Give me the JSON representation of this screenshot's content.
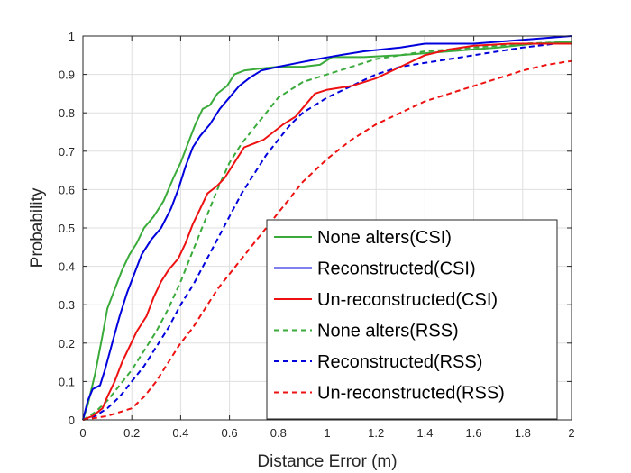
{
  "chart_data": {
    "type": "line",
    "xlabel": "Distance Error (m)",
    "ylabel": "Probability",
    "xlim": [
      0,
      2
    ],
    "ylim": [
      0,
      1
    ],
    "xticks": [
      "0",
      "0.2",
      "0.4",
      "0.6",
      "0.8",
      "1",
      "1.2",
      "1.4",
      "1.6",
      "1.8",
      "2"
    ],
    "yticks": [
      "0",
      "0.1",
      "0.2",
      "0.3",
      "0.4",
      "0.5",
      "0.6",
      "0.7",
      "0.8",
      "0.9",
      "1"
    ],
    "grid": true,
    "legend_position": "bottom-right",
    "series": [
      {
        "name": "None alters(CSI)",
        "color": "#3aab3a",
        "style": "solid",
        "points": [
          [
            0,
            0
          ],
          [
            0.02,
            0.04
          ],
          [
            0.05,
            0.12
          ],
          [
            0.08,
            0.22
          ],
          [
            0.1,
            0.29
          ],
          [
            0.13,
            0.34
          ],
          [
            0.16,
            0.39
          ],
          [
            0.19,
            0.43
          ],
          [
            0.22,
            0.46
          ],
          [
            0.25,
            0.5
          ],
          [
            0.29,
            0.53
          ],
          [
            0.33,
            0.57
          ],
          [
            0.37,
            0.63
          ],
          [
            0.4,
            0.67
          ],
          [
            0.43,
            0.72
          ],
          [
            0.46,
            0.77
          ],
          [
            0.49,
            0.81
          ],
          [
            0.52,
            0.82
          ],
          [
            0.55,
            0.85
          ],
          [
            0.59,
            0.87
          ],
          [
            0.62,
            0.9
          ],
          [
            0.66,
            0.91
          ],
          [
            0.72,
            0.915
          ],
          [
            0.8,
            0.92
          ],
          [
            0.9,
            0.92
          ],
          [
            0.97,
            0.925
          ],
          [
            1.02,
            0.945
          ],
          [
            1.15,
            0.945
          ],
          [
            1.3,
            0.95
          ],
          [
            1.5,
            0.96
          ],
          [
            1.7,
            0.97
          ],
          [
            1.85,
            0.98
          ],
          [
            2.0,
            0.985
          ]
        ]
      },
      {
        "name": "Reconstructed(CSI)",
        "color": "#0000dd",
        "style": "solid",
        "points": [
          [
            0,
            0
          ],
          [
            0.02,
            0.05
          ],
          [
            0.04,
            0.08
          ],
          [
            0.07,
            0.09
          ],
          [
            0.09,
            0.13
          ],
          [
            0.12,
            0.2
          ],
          [
            0.15,
            0.27
          ],
          [
            0.18,
            0.33
          ],
          [
            0.21,
            0.38
          ],
          [
            0.24,
            0.43
          ],
          [
            0.28,
            0.47
          ],
          [
            0.32,
            0.5
          ],
          [
            0.36,
            0.55
          ],
          [
            0.39,
            0.6
          ],
          [
            0.42,
            0.66
          ],
          [
            0.45,
            0.71
          ],
          [
            0.48,
            0.74
          ],
          [
            0.52,
            0.77
          ],
          [
            0.56,
            0.81
          ],
          [
            0.6,
            0.84
          ],
          [
            0.64,
            0.87
          ],
          [
            0.68,
            0.89
          ],
          [
            0.73,
            0.91
          ],
          [
            0.8,
            0.92
          ],
          [
            0.88,
            0.93
          ],
          [
            0.96,
            0.94
          ],
          [
            1.05,
            0.95
          ],
          [
            1.15,
            0.96
          ],
          [
            1.3,
            0.97
          ],
          [
            1.4,
            0.98
          ],
          [
            1.6,
            0.98
          ],
          [
            1.8,
            0.99
          ],
          [
            2.0,
            1.0
          ]
        ]
      },
      {
        "name": "Un-reconstructed(CSI)",
        "color": "#ee1111",
        "style": "solid",
        "points": [
          [
            0,
            0
          ],
          [
            0.04,
            0.01
          ],
          [
            0.08,
            0.03
          ],
          [
            0.1,
            0.06
          ],
          [
            0.13,
            0.1
          ],
          [
            0.16,
            0.15
          ],
          [
            0.19,
            0.19
          ],
          [
            0.22,
            0.23
          ],
          [
            0.26,
            0.27
          ],
          [
            0.29,
            0.32
          ],
          [
            0.32,
            0.36
          ],
          [
            0.35,
            0.39
          ],
          [
            0.39,
            0.42
          ],
          [
            0.42,
            0.46
          ],
          [
            0.45,
            0.51
          ],
          [
            0.48,
            0.55
          ],
          [
            0.51,
            0.59
          ],
          [
            0.55,
            0.61
          ],
          [
            0.58,
            0.63
          ],
          [
            0.61,
            0.66
          ],
          [
            0.63,
            0.68
          ],
          [
            0.66,
            0.71
          ],
          [
            0.7,
            0.72
          ],
          [
            0.74,
            0.73
          ],
          [
            0.78,
            0.75
          ],
          [
            0.82,
            0.77
          ],
          [
            0.87,
            0.79
          ],
          [
            0.91,
            0.82
          ],
          [
            0.95,
            0.85
          ],
          [
            1.0,
            0.86
          ],
          [
            1.1,
            0.87
          ],
          [
            1.2,
            0.89
          ],
          [
            1.3,
            0.92
          ],
          [
            1.4,
            0.95
          ],
          [
            1.5,
            0.965
          ],
          [
            1.6,
            0.975
          ],
          [
            1.75,
            0.98
          ],
          [
            2.0,
            0.98
          ]
        ]
      },
      {
        "name": "None alters(RSS)",
        "color": "#3aab3a",
        "style": "dashed",
        "points": [
          [
            0,
            0
          ],
          [
            0.05,
            0.02
          ],
          [
            0.1,
            0.05
          ],
          [
            0.15,
            0.09
          ],
          [
            0.2,
            0.13
          ],
          [
            0.25,
            0.18
          ],
          [
            0.3,
            0.23
          ],
          [
            0.35,
            0.29
          ],
          [
            0.4,
            0.36
          ],
          [
            0.45,
            0.44
          ],
          [
            0.5,
            0.52
          ],
          [
            0.55,
            0.6
          ],
          [
            0.6,
            0.67
          ],
          [
            0.65,
            0.72
          ],
          [
            0.7,
            0.76
          ],
          [
            0.75,
            0.8
          ],
          [
            0.8,
            0.84
          ],
          [
            0.85,
            0.86
          ],
          [
            0.9,
            0.88
          ],
          [
            1.0,
            0.9
          ],
          [
            1.1,
            0.92
          ],
          [
            1.2,
            0.94
          ],
          [
            1.3,
            0.95
          ],
          [
            1.4,
            0.96
          ],
          [
            1.5,
            0.965
          ],
          [
            1.6,
            0.97
          ],
          [
            1.7,
            0.975
          ],
          [
            1.8,
            0.98
          ],
          [
            2.0,
            0.985
          ]
        ]
      },
      {
        "name": "Reconstructed(RSS)",
        "color": "#0000dd",
        "style": "dashed",
        "points": [
          [
            0,
            0
          ],
          [
            0.05,
            0.01
          ],
          [
            0.1,
            0.03
          ],
          [
            0.15,
            0.06
          ],
          [
            0.2,
            0.1
          ],
          [
            0.25,
            0.14
          ],
          [
            0.3,
            0.19
          ],
          [
            0.35,
            0.24
          ],
          [
            0.4,
            0.3
          ],
          [
            0.45,
            0.35
          ],
          [
            0.5,
            0.41
          ],
          [
            0.55,
            0.47
          ],
          [
            0.6,
            0.53
          ],
          [
            0.65,
            0.59
          ],
          [
            0.7,
            0.64
          ],
          [
            0.75,
            0.69
          ],
          [
            0.8,
            0.73
          ],
          [
            0.85,
            0.77
          ],
          [
            0.9,
            0.8
          ],
          [
            1.0,
            0.84
          ],
          [
            1.1,
            0.87
          ],
          [
            1.2,
            0.9
          ],
          [
            1.3,
            0.92
          ],
          [
            1.4,
            0.93
          ],
          [
            1.5,
            0.94
          ],
          [
            1.6,
            0.95
          ],
          [
            1.7,
            0.96
          ],
          [
            1.8,
            0.97
          ],
          [
            2.0,
            0.985
          ]
        ]
      },
      {
        "name": "Un-reconstructed(RSS)",
        "color": "#ee1111",
        "style": "dashed",
        "points": [
          [
            0,
            0
          ],
          [
            0.1,
            0.01
          ],
          [
            0.2,
            0.03
          ],
          [
            0.25,
            0.06
          ],
          [
            0.3,
            0.1
          ],
          [
            0.35,
            0.15
          ],
          [
            0.4,
            0.2
          ],
          [
            0.45,
            0.24
          ],
          [
            0.5,
            0.29
          ],
          [
            0.55,
            0.34
          ],
          [
            0.6,
            0.38
          ],
          [
            0.65,
            0.42
          ],
          [
            0.7,
            0.46
          ],
          [
            0.75,
            0.5
          ],
          [
            0.8,
            0.54
          ],
          [
            0.85,
            0.58
          ],
          [
            0.9,
            0.62
          ],
          [
            1.0,
            0.68
          ],
          [
            1.1,
            0.73
          ],
          [
            1.2,
            0.77
          ],
          [
            1.3,
            0.8
          ],
          [
            1.4,
            0.83
          ],
          [
            1.5,
            0.85
          ],
          [
            1.6,
            0.87
          ],
          [
            1.7,
            0.89
          ],
          [
            1.8,
            0.91
          ],
          [
            1.9,
            0.925
          ],
          [
            2.0,
            0.935
          ]
        ]
      }
    ]
  }
}
